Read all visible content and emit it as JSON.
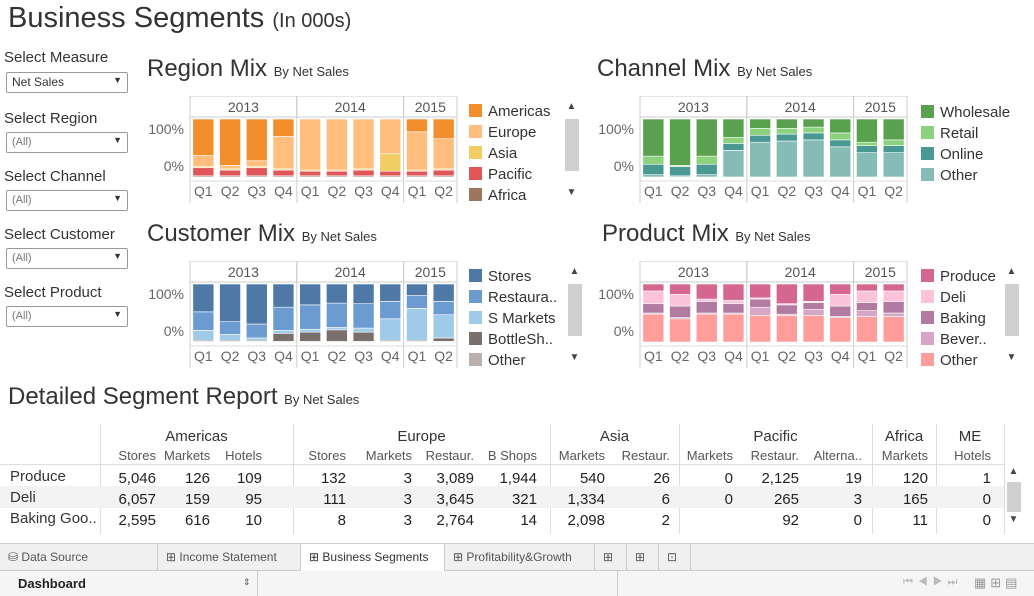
{
  "page": {
    "title": "Business Segments",
    "title_sub": "(In 000s)"
  },
  "filters": [
    {
      "label": "Select Measure",
      "value": "Net Sales"
    },
    {
      "label": "Select Region",
      "value": "(All)"
    },
    {
      "label": "Select Channel",
      "value": "(All)"
    },
    {
      "label": "Select Customer",
      "value": "(All)"
    },
    {
      "label": "Select Product",
      "value": "(All)"
    }
  ],
  "charts": {
    "region": {
      "title": "Region Mix",
      "by": "By Net Sales",
      "legend": [
        {
          "name": "Americas",
          "color": "#f28e2b"
        },
        {
          "name": "Europe",
          "color": "#ffbe7d"
        },
        {
          "name": "Asia",
          "color": "#f1ce63"
        },
        {
          "name": "Pacific",
          "color": "#e15759"
        },
        {
          "name": "Africa",
          "color": "#9d7660"
        }
      ]
    },
    "channel": {
      "title": "Channel Mix",
      "by": "By Net Sales",
      "legend": [
        {
          "name": "Wholesale",
          "color": "#59a14f"
        },
        {
          "name": "Retail",
          "color": "#8cd17d"
        },
        {
          "name": "Online",
          "color": "#499894"
        },
        {
          "name": "Other",
          "color": "#86bcb6"
        }
      ]
    },
    "customer": {
      "title": "Customer Mix",
      "by": "By Net Sales",
      "legend": [
        {
          "name": "Stores",
          "color": "#4e79a7"
        },
        {
          "name": "Restaura..",
          "color": "#6b9bd1"
        },
        {
          "name": "S Markets",
          "color": "#a0cbe8"
        },
        {
          "name": "BottleSh..",
          "color": "#79706e"
        },
        {
          "name": "Other",
          "color": "#bab0ac"
        }
      ]
    },
    "product": {
      "title": "Product Mix",
      "by": "By Net Sales",
      "legend": [
        {
          "name": "Produce",
          "color": "#d4668f"
        },
        {
          "name": "Deli",
          "color": "#fbc2d9"
        },
        {
          "name": "Baking",
          "color": "#b07aa1"
        },
        {
          "name": "Bever..",
          "color": "#d7a6c6"
        },
        {
          "name": "Other",
          "color": "#ff9d9a"
        }
      ]
    }
  },
  "chart_data": [
    {
      "type": "bar",
      "stacked": true,
      "name": "Region Mix",
      "years": [
        "2013",
        "2014",
        "2015"
      ],
      "categories": [
        "Q1",
        "Q2",
        "Q3",
        "Q4",
        "Q1",
        "Q2",
        "Q3",
        "Q4",
        "Q1",
        "Q2"
      ],
      "y_ticks": [
        "100%",
        "0%"
      ],
      "series": [
        {
          "name": "Africa",
          "values": [
            0.02,
            0.02,
            0.02,
            0.02,
            0.02,
            0.02,
            0.02,
            0.02,
            0.02,
            0.02
          ]
        },
        {
          "name": "Pacific",
          "values": [
            0.14,
            0.1,
            0.14,
            0.1,
            0.08,
            0.08,
            0.1,
            0.08,
            0.08,
            0.1
          ]
        },
        {
          "name": "Asia",
          "values": [
            0.02,
            0.02,
            0.02,
            0.02,
            0.02,
            0.02,
            0.02,
            0.3,
            0.02,
            0.02
          ]
        },
        {
          "name": "Europe",
          "values": [
            0.19,
            0.06,
            0.1,
            0.56,
            0.88,
            0.88,
            0.86,
            0.6,
            0.66,
            0.52
          ]
        },
        {
          "name": "Americas",
          "values": [
            0.63,
            0.8,
            0.72,
            0.3,
            0,
            0,
            0,
            0,
            0.22,
            0.34
          ]
        }
      ]
    },
    {
      "type": "bar",
      "stacked": true,
      "name": "Channel Mix",
      "years": [
        "2013",
        "2014",
        "2015"
      ],
      "categories": [
        "Q1",
        "Q2",
        "Q3",
        "Q4",
        "Q1",
        "Q2",
        "Q3",
        "Q4",
        "Q1",
        "Q2"
      ],
      "y_ticks": [
        "100%",
        "0%"
      ],
      "series": [
        {
          "name": "Other",
          "values": [
            0.04,
            0.02,
            0.04,
            0.46,
            0.6,
            0.62,
            0.64,
            0.52,
            0.42,
            0.42
          ]
        },
        {
          "name": "Online",
          "values": [
            0.18,
            0.16,
            0.18,
            0.12,
            0.12,
            0.12,
            0.12,
            0.12,
            0.12,
            0.12
          ]
        },
        {
          "name": "Retail",
          "values": [
            0.14,
            0.02,
            0.14,
            0.1,
            0.12,
            0.1,
            0.1,
            0.12,
            0.06,
            0.1
          ]
        },
        {
          "name": "Wholesale",
          "values": [
            0.64,
            0.8,
            0.64,
            0.32,
            0.16,
            0.16,
            0.14,
            0.24,
            0.4,
            0.36
          ]
        }
      ]
    },
    {
      "type": "bar",
      "stacked": true,
      "name": "Customer Mix",
      "years": [
        "2013",
        "2014",
        "2015"
      ],
      "categories": [
        "Q1",
        "Q2",
        "Q3",
        "Q4",
        "Q1",
        "Q2",
        "Q3",
        "Q4",
        "Q1",
        "Q2"
      ],
      "y_ticks": [
        "100%",
        "0%"
      ],
      "series": [
        {
          "name": "Other",
          "values": [
            0.01,
            0.01,
            0.01,
            0.01,
            0.01,
            0.01,
            0.01,
            0.01,
            0.01,
            0.01
          ]
        },
        {
          "name": "BottleSh..",
          "values": [
            0.02,
            0.02,
            0.02,
            0.14,
            0.16,
            0.2,
            0.16,
            0.02,
            0.02,
            0.06
          ]
        },
        {
          "name": "S Markets",
          "values": [
            0.17,
            0.1,
            0.04,
            0.05,
            0.05,
            0.04,
            0.07,
            0.37,
            0.55,
            0.4
          ]
        },
        {
          "name": "Restaura..",
          "values": [
            0.32,
            0.22,
            0.24,
            0.4,
            0.42,
            0.42,
            0.42,
            0.3,
            0.22,
            0.23
          ]
        },
        {
          "name": "Stores",
          "values": [
            0.48,
            0.65,
            0.69,
            0.4,
            0.36,
            0.33,
            0.34,
            0.3,
            0.2,
            0.3
          ]
        }
      ]
    },
    {
      "type": "bar",
      "stacked": true,
      "name": "Product Mix",
      "years": [
        "2013",
        "2014",
        "2015"
      ],
      "categories": [
        "Q1",
        "Q2",
        "Q3",
        "Q4",
        "Q1",
        "Q2",
        "Q3",
        "Q4",
        "Q1",
        "Q2"
      ],
      "y_ticks": [
        "100%",
        "0%"
      ],
      "series": [
        {
          "name": "Other",
          "values": [
            0.48,
            0.4,
            0.48,
            0.48,
            0.46,
            0.46,
            0.46,
            0.42,
            0.44,
            0.44
          ]
        },
        {
          "name": "Bever..",
          "values": [
            0.02,
            0.02,
            0.02,
            0.02,
            0.14,
            0.02,
            0.1,
            0.02,
            0.1,
            0.06
          ]
        },
        {
          "name": "Baking",
          "values": [
            0.16,
            0.2,
            0.2,
            0.16,
            0.14,
            0.16,
            0.12,
            0.18,
            0.14,
            0.2
          ]
        },
        {
          "name": "Deli",
          "values": [
            0.22,
            0.2,
            0.04,
            0.06,
            0.02,
            0.02,
            0.02,
            0.2,
            0.2,
            0.18
          ]
        },
        {
          "name": "Produce",
          "values": [
            0.12,
            0.18,
            0.26,
            0.28,
            0.24,
            0.34,
            0.3,
            0.18,
            0.12,
            0.12
          ]
        }
      ]
    }
  ],
  "report": {
    "title": "Detailed Segment Report",
    "by": "By Net Sales",
    "groups": [
      {
        "label": "Americas",
        "cols": [
          "Stores",
          "Markets",
          "Hotels"
        ]
      },
      {
        "label": "Europe",
        "cols": [
          "Stores",
          "Markets",
          "Restaur.",
          "B Shops"
        ]
      },
      {
        "label": "Asia",
        "cols": [
          "Markets",
          "Restaur."
        ]
      },
      {
        "label": "Pacific",
        "cols": [
          "Markets",
          "Restaur.",
          "Alterna.."
        ]
      },
      {
        "label": "Africa",
        "cols": [
          "Markets"
        ]
      },
      {
        "label": "ME",
        "cols": [
          "Hotels"
        ]
      }
    ],
    "rows": [
      {
        "label": "Produce",
        "values": [
          "5,046",
          "126",
          "109",
          "132",
          "3",
          "3,089",
          "1,944",
          "540",
          "26",
          "0",
          "2,125",
          "19",
          "120",
          "1"
        ]
      },
      {
        "label": "Deli",
        "values": [
          "6,057",
          "159",
          "95",
          "111",
          "3",
          "3,645",
          "321",
          "1,334",
          "6",
          "0",
          "265",
          "3",
          "165",
          "0"
        ]
      },
      {
        "label": "Baking Goo..",
        "values": [
          "2,595",
          "616",
          "10",
          "8",
          "3",
          "2,764",
          "14",
          "2,098",
          "2",
          "",
          "92",
          "0",
          "11",
          "0"
        ]
      }
    ]
  },
  "tabs": [
    {
      "label": "Data Source",
      "icon": "database-icon"
    },
    {
      "label": "Income Statement",
      "icon": "grid-icon"
    },
    {
      "label": "Business Segments",
      "icon": "grid-icon",
      "active": true
    },
    {
      "label": "Profitability&Growth",
      "icon": "grid-icon"
    }
  ],
  "status": {
    "view_selector": "Dashboard"
  }
}
